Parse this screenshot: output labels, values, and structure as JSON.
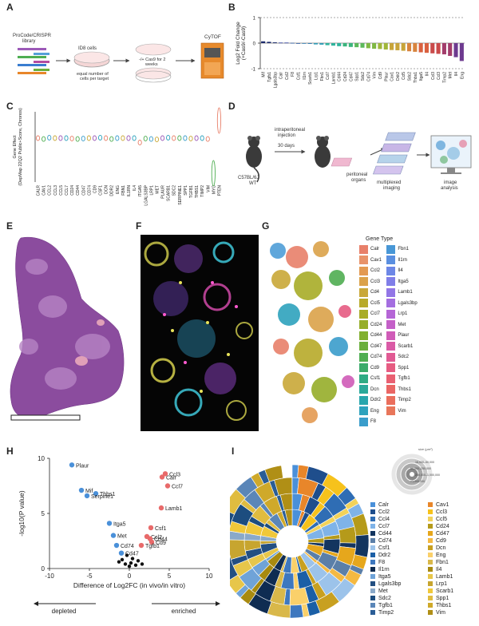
{
  "panel_labels": [
    "A",
    "B",
    "C",
    "D",
    "E",
    "F",
    "G",
    "H",
    "I"
  ],
  "panel_a": {
    "library": "ProCode/CRISPR\nlibrary",
    "cells": "ID8 cells",
    "equal": "equal number of\ncells per target",
    "cas9": "-/+ Cas9 for 2\nweeks",
    "cytof": "CyTOF"
  },
  "panel_d": {
    "injection": "intraperitoneal\ninjection",
    "days": "30 days",
    "mouse": "C57BL/6J\nWT",
    "organs": "peritoneal\norgans",
    "imaging": "multiplexed\nimaging",
    "analysis": "image\nanalysis"
  },
  "panel_g": {
    "legend_title": "Gene Type",
    "legend_left": [
      {
        "name": "Calr",
        "color": "#e8806a"
      },
      {
        "name": "Cav1",
        "color": "#e8936a"
      },
      {
        "name": "Ccl2",
        "color": "#e39a52"
      },
      {
        "name": "Ccl3",
        "color": "#dba24a"
      },
      {
        "name": "Cd4",
        "color": "#c9a838"
      },
      {
        "name": "Ccl5",
        "color": "#b8aa2a"
      },
      {
        "name": "Ccl7",
        "color": "#a8ac28"
      },
      {
        "name": "Cd24",
        "color": "#96ae2a"
      },
      {
        "name": "Cd44",
        "color": "#82b030"
      },
      {
        "name": "Cd47",
        "color": "#6aaf3c"
      },
      {
        "name": "Cd74",
        "color": "#4fae52"
      },
      {
        "name": "Cd9",
        "color": "#3aab6a"
      },
      {
        "name": "Csf1",
        "color": "#2eab84"
      },
      {
        "name": "Dcn",
        "color": "#2aa99a"
      },
      {
        "name": "Ddr2",
        "color": "#28a6ad"
      },
      {
        "name": "Eng",
        "color": "#2ea2bd"
      },
      {
        "name": "F8",
        "color": "#3a9dcb"
      }
    ],
    "legend_right": [
      {
        "name": "Fbn1",
        "color": "#4897d6"
      },
      {
        "name": "Il1rn",
        "color": "#5a8fe0"
      },
      {
        "name": "Il4",
        "color": "#6d87e6"
      },
      {
        "name": "Itga5",
        "color": "#807ee8"
      },
      {
        "name": "Lamb1",
        "color": "#9276e6"
      },
      {
        "name": "Lgals3bp",
        "color": "#a46ee0"
      },
      {
        "name": "Lrp1",
        "color": "#b566d6"
      },
      {
        "name": "Met",
        "color": "#c460c8"
      },
      {
        "name": "Plaur",
        "color": "#d05cb8"
      },
      {
        "name": "Scarb1",
        "color": "#da5aa6"
      },
      {
        "name": "Sdc2",
        "color": "#e15a94"
      },
      {
        "name": "Spp1",
        "color": "#e65c82"
      },
      {
        "name": "Tgfb1",
        "color": "#e96072"
      },
      {
        "name": "Thbs1",
        "color": "#ea6664"
      },
      {
        "name": "Timp2",
        "color": "#ea6e5c"
      },
      {
        "name": "Vim",
        "color": "#e8765a"
      }
    ]
  },
  "chart_data": [
    {
      "panel": "B",
      "type": "bar",
      "ylabel": "Log2 Fold Change\n(+Cas9/-Cas9)",
      "ylim": [
        -1,
        1
      ],
      "yticks": [
        -1,
        0,
        1
      ],
      "reference_lines": [
        -1,
        1
      ],
      "categories": [
        "Mif",
        "Tgfb1",
        "Lgals3bp",
        "Calr",
        "Ccl2",
        "F8",
        "Csf1",
        "Il1rn",
        "Scarb1",
        "Lrp1",
        "Fbn1",
        "Ccl7",
        "Lamb1",
        "Cd44",
        "Cd24",
        "Cd47",
        "Spp1",
        "Sdc2",
        "Cd74",
        "Vim",
        "Cd9",
        "Plaur",
        "Cav1",
        "Ddr2",
        "Ccl5",
        "Sdc2",
        "Thbs1",
        "Itga5",
        "Il4",
        "Ccl3",
        "Ccl3",
        "Timp2",
        "Met",
        "Il4",
        "Eng"
      ],
      "values": [
        0.07,
        0.05,
        0.03,
        0.02,
        0.02,
        0.01,
        0.0,
        -0.02,
        -0.03,
        -0.05,
        -0.06,
        -0.08,
        -0.1,
        -0.12,
        -0.13,
        -0.15,
        -0.16,
        -0.18,
        -0.2,
        -0.22,
        -0.23,
        -0.25,
        -0.27,
        -0.28,
        -0.3,
        -0.32,
        -0.34,
        -0.36,
        -0.38,
        -0.4,
        -0.42,
        -0.44,
        -0.5,
        -0.55,
        -0.7
      ]
    },
    {
      "panel": "C",
      "type": "violin",
      "ylabel": "Gene Effect\n(DepMap 22Q2 Public+Score, Chronos)",
      "categories": [
        "CALR",
        "CAV1",
        "CCL2",
        "CCL3",
        "CCL5",
        "CCL7",
        "CD24",
        "CD44",
        "CD47",
        "CD74",
        "CD9",
        "CSF1",
        "DCN",
        "DDR2",
        "ENG",
        "FBN1",
        "IL1RN",
        "IL4",
        "ITGA5",
        "LGALS3BP",
        "LRP1",
        "MET",
        "PLAUR",
        "SCARB1",
        "SDC2",
        "SERPINE1",
        "SPP1",
        "TGFB1",
        "THBS1",
        "TIMP2",
        "VIM",
        "MYC",
        "PTEN"
      ],
      "values": [
        0,
        -0.02,
        0.01,
        0,
        0,
        0,
        -0.01,
        -0.02,
        -0.01,
        0,
        0,
        0.01,
        0,
        -0.02,
        0,
        0,
        0,
        0,
        -0.1,
        -0.01,
        -0.02,
        -0.03,
        0,
        0.01,
        0,
        0,
        0,
        -0.01,
        0,
        0,
        -0.02,
        -0.8,
        0.4
      ]
    },
    {
      "panel": "H",
      "type": "scatter",
      "xlabel": "Difference of Log2FC (in vivo/in vitro)",
      "ylabel": "-log10(P value)",
      "xlim": [
        -10,
        10
      ],
      "ylim": [
        0,
        10
      ],
      "xticks": [
        -10,
        -5,
        0,
        5,
        10
      ],
      "yticks": [
        0,
        5,
        10
      ],
      "direction_left": "depleted",
      "direction_right": "enriched",
      "points": [
        {
          "label": "Plaur",
          "x": -7.2,
          "y": 9.4,
          "group": "depleted"
        },
        {
          "label": "Mif",
          "x": -6.0,
          "y": 7.1,
          "group": "depleted"
        },
        {
          "label": "Thbs1",
          "x": -4.2,
          "y": 6.8,
          "group": "depleted"
        },
        {
          "label": "Serpine1",
          "x": -5.3,
          "y": 6.6,
          "group": "depleted"
        },
        {
          "label": "Itga5",
          "x": -2.5,
          "y": 4.1,
          "group": "depleted"
        },
        {
          "label": "Met",
          "x": -2.0,
          "y": 3.0,
          "group": "depleted"
        },
        {
          "label": "Cd74",
          "x": -1.6,
          "y": 2.1,
          "group": "depleted"
        },
        {
          "label": "Cd47",
          "x": -1.0,
          "y": 1.4,
          "group": "depleted"
        },
        {
          "label": "Ccl3",
          "x": 4.5,
          "y": 8.6,
          "group": "enriched"
        },
        {
          "label": "Calr",
          "x": 4.1,
          "y": 8.3,
          "group": "enriched"
        },
        {
          "label": "Ccl7",
          "x": 4.8,
          "y": 7.5,
          "group": "enriched"
        },
        {
          "label": "Lamb1",
          "x": 4.0,
          "y": 5.5,
          "group": "enriched"
        },
        {
          "label": "Csf1",
          "x": 2.7,
          "y": 3.7,
          "group": "enriched"
        },
        {
          "label": "Ccl2",
          "x": 2.2,
          "y": 2.9,
          "group": "enriched"
        },
        {
          "label": "Cd44",
          "x": 2.6,
          "y": 2.7,
          "group": "enriched"
        },
        {
          "label": "Cd9",
          "x": 2.8,
          "y": 2.4,
          "group": "enriched"
        },
        {
          "label": "Tgfb1",
          "x": 1.5,
          "y": 2.1,
          "group": "enriched"
        },
        {
          "label": "",
          "x": -0.3,
          "y": 1.2,
          "group": "ns"
        },
        {
          "label": "",
          "x": 0.4,
          "y": 0.9,
          "group": "ns"
        },
        {
          "label": "",
          "x": 0.2,
          "y": 0.5,
          "group": "ns"
        },
        {
          "label": "",
          "x": -0.5,
          "y": 0.4,
          "group": "ns"
        },
        {
          "label": "",
          "x": 0.8,
          "y": 0.3,
          "group": "ns"
        },
        {
          "label": "",
          "x": 1.1,
          "y": 0.7,
          "group": "ns"
        },
        {
          "label": "",
          "x": -0.9,
          "y": 0.8,
          "group": "ns"
        },
        {
          "label": "",
          "x": 0.0,
          "y": 0.2,
          "group": "ns"
        },
        {
          "label": "",
          "x": 1.6,
          "y": 0.4,
          "group": "ns"
        },
        {
          "label": "",
          "x": -1.3,
          "y": 0.6,
          "group": "ns"
        }
      ]
    },
    {
      "panel": "I",
      "type": "pie",
      "size_legend_title": "size (μm²)",
      "size_legend": [
        "16,000–50,000",
        "50,000–250,000",
        "250,000–1,000,000",
        ">1,000,000"
      ],
      "legend": [
        {
          "name": "Calr",
          "color": "#4a90d9"
        },
        {
          "name": "Cav1",
          "color": "#e8862a"
        },
        {
          "name": "Ccl2",
          "color": "#1f4e8c"
        },
        {
          "name": "Ccl3",
          "color": "#f6c21c"
        },
        {
          "name": "Ccl4",
          "color": "#2f6db4"
        },
        {
          "name": "Ccl5",
          "color": "#f2d25a"
        },
        {
          "name": "Ccl7",
          "color": "#7fb3e8"
        },
        {
          "name": "Cd24",
          "color": "#b59a1a"
        },
        {
          "name": "Cd44",
          "color": "#13355f"
        },
        {
          "name": "Cd47",
          "color": "#e6a71c"
        },
        {
          "name": "Cd74",
          "color": "#5b7fa8"
        },
        {
          "name": "Cd9",
          "color": "#f4b942"
        },
        {
          "name": "Csf1",
          "color": "#9cc3ea"
        },
        {
          "name": "Dcn",
          "color": "#c8a020"
        },
        {
          "name": "Ddr2",
          "color": "#1b5fa6"
        },
        {
          "name": "Eng",
          "color": "#fad06a"
        },
        {
          "name": "F8",
          "color": "#3e78bf"
        },
        {
          "name": "Fbn1",
          "color": "#d9b84a"
        },
        {
          "name": "Il1rn",
          "color": "#0f2c52"
        },
        {
          "name": "Il4",
          "color": "#a88a10"
        },
        {
          "name": "Itga5",
          "color": "#6fa3d8"
        },
        {
          "name": "Lamb1",
          "color": "#e7c64a"
        },
        {
          "name": "Lgals3bp",
          "color": "#234f82"
        },
        {
          "name": "Lrp1",
          "color": "#c7a52f"
        },
        {
          "name": "Met",
          "color": "#8aa9c9"
        },
        {
          "name": "Scarb1",
          "color": "#f0c83a"
        },
        {
          "name": "Sdc2",
          "color": "#1d4d7f"
        },
        {
          "name": "Spp1",
          "color": "#e0bc3f"
        },
        {
          "name": "Tgfb1",
          "color": "#5a86b8"
        },
        {
          "name": "Thbs1",
          "color": "#cfa92a"
        },
        {
          "name": "Timp2",
          "color": "#2a5d96"
        },
        {
          "name": "Vim",
          "color": "#b08f16"
        }
      ]
    }
  ]
}
